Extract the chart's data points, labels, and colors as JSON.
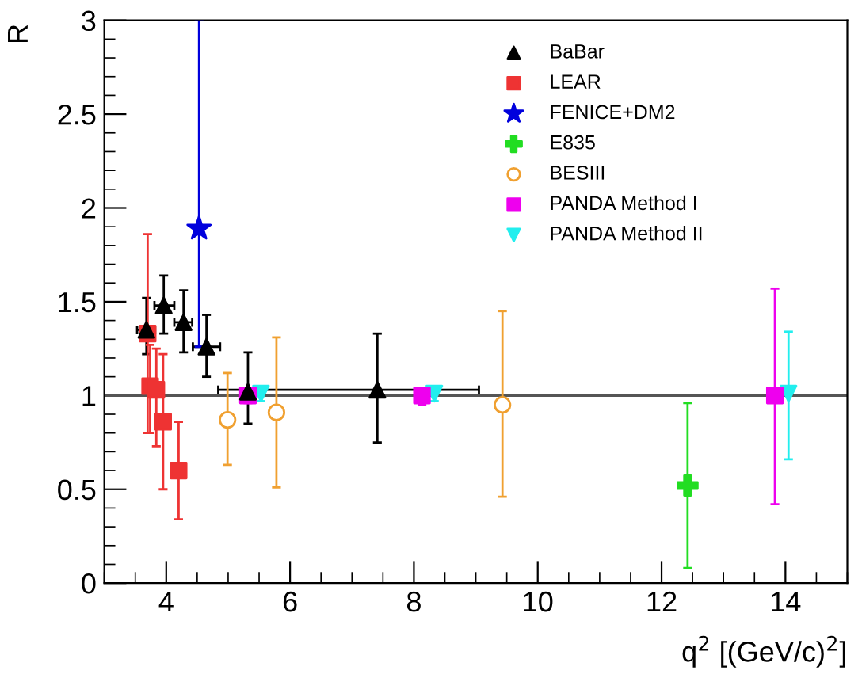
{
  "chart_data": {
    "type": "scatter",
    "xlabel": "q$^{2}$ [(GeV/c)$^{2}$]",
    "ylabel": "R",
    "xlim": [
      3,
      15
    ],
    "ylim": [
      0,
      3
    ],
    "xticks": [
      4,
      6,
      8,
      10,
      12,
      14
    ],
    "yticks": [
      0,
      0.5,
      1,
      1.5,
      2,
      2.5,
      3
    ],
    "grid": false,
    "legend": "top right",
    "ref_lines": [
      {
        "axis": "y",
        "value": 1,
        "color": "#555555"
      }
    ],
    "series": [
      {
        "name": "BaBar",
        "color": "#000000",
        "marker": "triangle",
        "x": [
          3.68,
          3.96,
          4.28,
          4.65,
          5.32,
          7.41
        ],
        "values": [
          1.35,
          1.48,
          1.39,
          1.26,
          1.02,
          1.03
        ],
        "errors": [
          [
            1.22,
            1.52
          ],
          [
            1.33,
            1.64
          ],
          [
            1.23,
            1.56
          ],
          [
            1.1,
            1.43
          ],
          [
            0.85,
            1.23
          ],
          [
            0.75,
            1.33
          ]
        ],
        "xerrors": [
          [
            3.53,
            3.82
          ],
          [
            3.81,
            4.13
          ],
          [
            4.13,
            4.42
          ],
          [
            4.43,
            4.87
          ],
          null,
          [
            4.84,
            9.05
          ]
        ]
      },
      {
        "name": "LEAR",
        "color": "#ee3333",
        "marker": "square",
        "x": [
          3.7,
          3.74,
          3.84,
          3.95,
          4.2
        ],
        "values": [
          1.33,
          1.05,
          1.03,
          0.86,
          0.6
        ],
        "errors": [
          [
            0.8,
            1.86
          ],
          [
            0.8,
            1.27
          ],
          [
            0.73,
            1.25
          ],
          [
            0.5,
            1.22
          ],
          [
            0.34,
            0.86
          ]
        ]
      },
      {
        "name": "FENICE+DM2",
        "color": "#0000dd",
        "marker": "star",
        "x": [
          4.53
        ],
        "values": [
          1.89
        ],
        "errors": [
          [
            1.26,
            3
          ]
        ]
      },
      {
        "name": "E835",
        "color": "#22dd22",
        "marker": "cross",
        "x": [
          12.42
        ],
        "values": [
          0.52
        ],
        "errors": [
          [
            0.08,
            0.96
          ]
        ]
      },
      {
        "name": "BESIII",
        "color": "#f0a030",
        "marker": "circle",
        "x": [
          4.99,
          5.78,
          9.43
        ],
        "values": [
          0.87,
          0.91,
          0.95
        ],
        "errors": [
          [
            0.63,
            1.12
          ],
          [
            0.51,
            1.31
          ],
          [
            0.46,
            1.45
          ]
        ]
      },
      {
        "name": "PANDA Method I",
        "color": "#ee00ee",
        "marker": "square",
        "x": [
          5.32,
          8.13,
          13.83
        ],
        "values": [
          1.0,
          1.0,
          1.0
        ],
        "errors": [
          [
            0.96,
            1.04
          ],
          [
            0.95,
            1.04
          ],
          [
            0.42,
            1.57
          ]
        ]
      },
      {
        "name": "PANDA Method II",
        "color": "#22eeee",
        "marker": "triangle_down",
        "x": [
          5.53,
          8.33,
          14.05
        ],
        "values": [
          1.01,
          1.01,
          1.01
        ],
        "errors": [
          [
            0.97,
            1.05
          ],
          [
            0.97,
            1.05
          ],
          [
            0.66,
            1.34
          ]
        ]
      }
    ]
  }
}
